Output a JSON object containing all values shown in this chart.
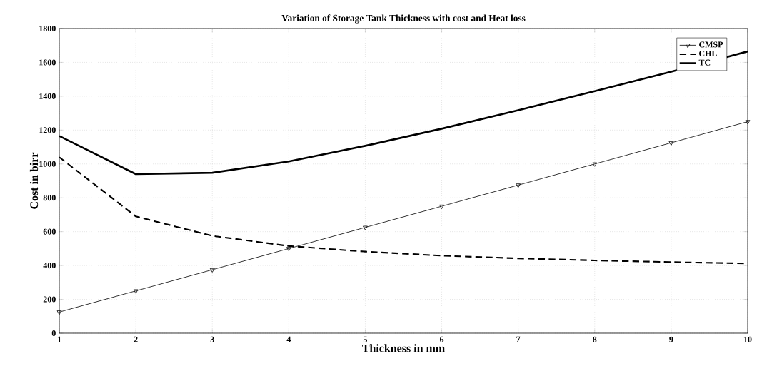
{
  "chart_data": {
    "type": "line",
    "title": "Variation of Storage Tank Thickness with cost and Heat loss",
    "xlabel": "Thickness in mm",
    "ylabel": "Cost in birr",
    "x": [
      1,
      2,
      3,
      4,
      5,
      6,
      7,
      8,
      9,
      10
    ],
    "series": [
      {
        "name": "CMSP",
        "color": "#000000",
        "marker": "triangle",
        "line_style": "solid",
        "values": [
          125,
          250,
          375,
          500,
          625,
          750,
          875,
          1000,
          1125,
          1250
        ]
      },
      {
        "name": "CHL",
        "color": "#000000",
        "marker": "none",
        "line_style": "dashed",
        "values": [
          1040,
          690,
          575,
          515,
          482,
          458,
          442,
          430,
          420,
          412
        ]
      },
      {
        "name": "TC",
        "color": "#000000",
        "marker": "none",
        "line_style": "solid",
        "values": [
          1165,
          940,
          948,
          1015,
          1107,
          1208,
          1317,
          1430,
          1545,
          1665
        ]
      }
    ],
    "xlim": [
      1,
      10
    ],
    "ylim": [
      0,
      1800
    ],
    "xticks": [
      1,
      2,
      3,
      4,
      5,
      6,
      7,
      8,
      9,
      10
    ],
    "yticks": [
      0,
      200,
      400,
      600,
      800,
      1000,
      1200,
      1400,
      1600,
      1800
    ],
    "grid": true,
    "legend": "top right"
  }
}
